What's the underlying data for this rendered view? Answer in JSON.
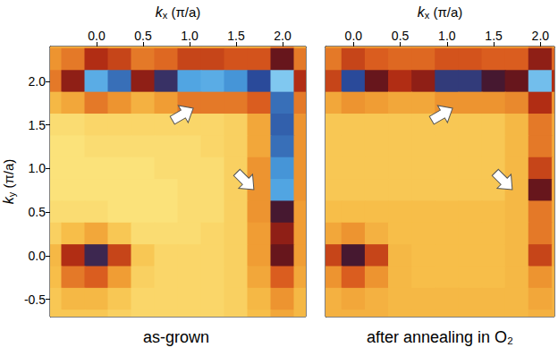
{
  "chart_data": [
    {
      "type": "heatmap",
      "title": "as-grown",
      "x_label": {
        "symbol": "k",
        "subscript": "x",
        "unit": "(π/a)"
      },
      "y_label": {
        "symbol": "k",
        "subscript": "y",
        "unit": "(π/a)"
      },
      "xlim": [
        -0.5,
        2.25
      ],
      "ylim": [
        -0.7,
        2.4
      ],
      "xticks": [
        {
          "value": 0,
          "label": "0.0"
        },
        {
          "value": 0.5,
          "label": "0.5"
        },
        {
          "value": 1,
          "label": "1.0"
        },
        {
          "value": 1.5,
          "label": "1.5"
        },
        {
          "value": 2,
          "label": "2.0"
        }
      ],
      "yticks": [
        {
          "value": -0.5,
          "label": "-0.5"
        },
        {
          "value": 0,
          "label": "0.0"
        },
        {
          "value": 0.5,
          "label": "0.5"
        },
        {
          "value": 1,
          "label": "1.0"
        },
        {
          "value": 1.5,
          "label": "1.5"
        },
        {
          "value": 2,
          "label": "2.0"
        }
      ],
      "tick_labels": true,
      "x": [
        -0.5,
        -0.25,
        0,
        0.25,
        0.5,
        0.75,
        1,
        1.25,
        1.5,
        1.75,
        2,
        2.25
      ],
      "y": [
        2.5,
        2.25,
        2,
        1.75,
        1.5,
        1.25,
        1,
        0.75,
        0.5,
        0.25,
        0,
        -0.25,
        -0.5,
        -0.75
      ],
      "cells": [
        [
          0.25,
          0.25,
          0.28,
          0.25,
          0.25,
          0.25,
          0.25,
          0.25,
          0.25,
          0.25,
          0.35,
          0.25
        ],
        [
          0.3,
          0.35,
          0.5,
          0.45,
          0.35,
          0.38,
          0.45,
          0.45,
          0.42,
          0.42,
          0.6,
          0.35
        ],
        [
          0.35,
          0.55,
          0.9,
          0.8,
          0.55,
          0.7,
          0.88,
          0.9,
          0.85,
          0.75,
          0.98,
          0.5
        ],
        [
          0.2,
          0.25,
          0.35,
          0.3,
          0.22,
          0.28,
          0.35,
          0.35,
          0.35,
          0.4,
          0.8,
          0.35
        ],
        [
          0.08,
          0.08,
          0.1,
          0.1,
          0.1,
          0.1,
          0.1,
          0.1,
          0.12,
          0.25,
          0.78,
          0.3
        ],
        [
          0.06,
          0.06,
          0.08,
          0.08,
          0.08,
          0.08,
          0.08,
          0.1,
          0.12,
          0.25,
          0.8,
          0.3
        ],
        [
          0.06,
          0.06,
          0.06,
          0.06,
          0.06,
          0.08,
          0.08,
          0.08,
          0.12,
          0.3,
          0.85,
          0.3
        ],
        [
          0.06,
          0.06,
          0.06,
          0.06,
          0.06,
          0.06,
          0.08,
          0.08,
          0.12,
          0.3,
          0.88,
          0.3
        ],
        [
          0.08,
          0.08,
          0.08,
          0.06,
          0.06,
          0.06,
          0.08,
          0.08,
          0.12,
          0.3,
          0.65,
          0.28
        ],
        [
          0.12,
          0.18,
          0.25,
          0.15,
          0.08,
          0.08,
          0.08,
          0.1,
          0.12,
          0.28,
          0.55,
          0.28
        ],
        [
          0.2,
          0.5,
          0.68,
          0.45,
          0.15,
          0.1,
          0.1,
          0.1,
          0.12,
          0.28,
          0.6,
          0.28
        ],
        [
          0.18,
          0.35,
          0.4,
          0.28,
          0.12,
          0.1,
          0.1,
          0.1,
          0.12,
          0.25,
          0.4,
          0.25
        ],
        [
          0.15,
          0.2,
          0.2,
          0.15,
          0.1,
          0.1,
          0.1,
          0.1,
          0.12,
          0.2,
          0.3,
          0.2
        ],
        [
          0.15,
          0.15,
          0.15,
          0.12,
          0.1,
          0.1,
          0.1,
          0.1,
          0.12,
          0.18,
          0.25,
          0.2
        ]
      ]
    },
    {
      "type": "heatmap",
      "title": "after annealing in O₂",
      "x_label": {
        "symbol": "k",
        "subscript": "x",
        "unit": "(π/a)"
      },
      "xlim": [
        -0.3,
        2.15
      ],
      "ylim": [
        -0.7,
        2.4
      ],
      "xticks": [
        {
          "value": 0,
          "label": "0.0"
        },
        {
          "value": 0.5,
          "label": "0.5"
        },
        {
          "value": 1,
          "label": "1.0"
        },
        {
          "value": 1.5,
          "label": "1.5"
        },
        {
          "value": 2,
          "label": "2.0"
        }
      ],
      "yticks": [
        -0.5,
        0,
        0.5,
        1,
        1.5,
        2
      ],
      "tick_labels": "x",
      "x": [
        -0.25,
        0,
        0.25,
        0.5,
        0.75,
        1,
        1.25,
        1.5,
        1.75,
        2,
        2.25
      ],
      "y": [
        2.5,
        2.25,
        2,
        1.75,
        1.5,
        1.25,
        1,
        0.75,
        0.5,
        0.25,
        0,
        -0.25,
        -0.5,
        -0.75
      ],
      "cells": [
        [
          0.3,
          0.3,
          0.3,
          0.3,
          0.3,
          0.3,
          0.3,
          0.3,
          0.3,
          0.35,
          0.3
        ],
        [
          0.35,
          0.45,
          0.4,
          0.38,
          0.38,
          0.42,
          0.42,
          0.4,
          0.4,
          0.55,
          0.38
        ],
        [
          0.45,
          0.75,
          0.6,
          0.5,
          0.55,
          0.72,
          0.72,
          0.65,
          0.6,
          0.95,
          0.5
        ],
        [
          0.25,
          0.3,
          0.28,
          0.25,
          0.25,
          0.3,
          0.3,
          0.3,
          0.32,
          0.5,
          0.3
        ],
        [
          0.15,
          0.15,
          0.15,
          0.15,
          0.15,
          0.15,
          0.15,
          0.15,
          0.2,
          0.35,
          0.25
        ],
        [
          0.15,
          0.15,
          0.15,
          0.15,
          0.15,
          0.15,
          0.15,
          0.15,
          0.2,
          0.35,
          0.25
        ],
        [
          0.15,
          0.15,
          0.15,
          0.15,
          0.15,
          0.15,
          0.15,
          0.15,
          0.2,
          0.45,
          0.25
        ],
        [
          0.15,
          0.15,
          0.15,
          0.15,
          0.15,
          0.15,
          0.15,
          0.15,
          0.2,
          0.6,
          0.25
        ],
        [
          0.18,
          0.18,
          0.18,
          0.18,
          0.18,
          0.18,
          0.18,
          0.18,
          0.2,
          0.35,
          0.25
        ],
        [
          0.25,
          0.3,
          0.22,
          0.18,
          0.18,
          0.18,
          0.18,
          0.18,
          0.2,
          0.35,
          0.25
        ],
        [
          0.45,
          0.65,
          0.45,
          0.2,
          0.18,
          0.18,
          0.18,
          0.18,
          0.2,
          0.45,
          0.25
        ],
        [
          0.3,
          0.4,
          0.3,
          0.2,
          0.18,
          0.18,
          0.18,
          0.18,
          0.2,
          0.3,
          0.22
        ],
        [
          0.22,
          0.25,
          0.22,
          0.2,
          0.2,
          0.2,
          0.2,
          0.2,
          0.2,
          0.25,
          0.22
        ],
        [
          0.22,
          0.22,
          0.22,
          0.2,
          0.2,
          0.2,
          0.2,
          0.2,
          0.2,
          0.22,
          0.22
        ]
      ]
    }
  ]
}
